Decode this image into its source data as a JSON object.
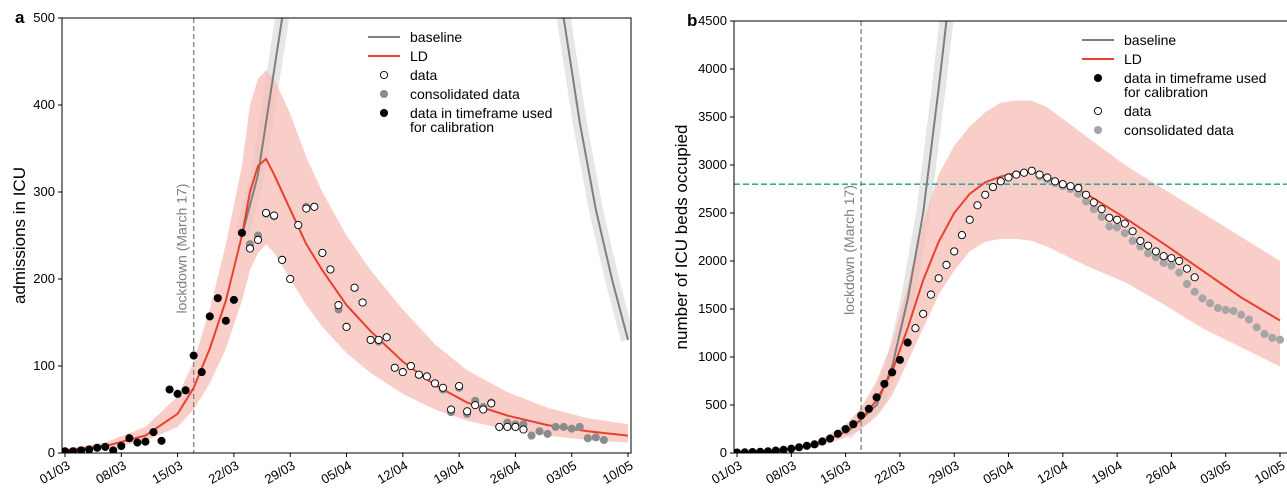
{
  "chart_data": [
    {
      "type": "scatter-line",
      "panel_label": "a",
      "y_label": "admissions in ICU",
      "xlim": [
        "01/03",
        "10/05"
      ],
      "xticks": [
        "01/03",
        "08/03",
        "15/03",
        "22/03",
        "29/03",
        "05/04",
        "12/04",
        "19/04",
        "26/04",
        "03/05",
        "10/05"
      ],
      "ylim": [
        0,
        500
      ],
      "yticks": [
        0,
        100,
        200,
        300,
        400,
        500
      ],
      "legend": "upper right",
      "vline": {
        "x": "17/03",
        "label": "lockdown (March 17)",
        "color": "#808080"
      },
      "series": [
        {
          "name": "baseline",
          "kind": "line",
          "color": "#7f7f7f",
          "halo_color": "#e6e6e6",
          "x": [
            "23/03",
            "25/03",
            "26/03",
            "27/03",
            "28/03",
            "15/04",
            "02/05",
            "04/05",
            "06/05",
            "08/05",
            "10/05"
          ],
          "values": [
            250,
            320,
            380,
            440,
            500,
            null,
            500,
            380,
            280,
            200,
            130
          ]
        },
        {
          "name": "LD",
          "kind": "line",
          "color": "#e8402e",
          "band_color": "#f8bdb5",
          "x": [
            "01/03",
            "06/03",
            "11/03",
            "15/03",
            "17/03",
            "19/03",
            "21/03",
            "23/03",
            "24/03",
            "25/03",
            "26/03",
            "27/03",
            "29/03",
            "31/03",
            "02/04",
            "05/04",
            "08/04",
            "12/04",
            "16/04",
            "20/04",
            "25/04",
            "30/04",
            "05/05",
            "10/05"
          ],
          "values": [
            3,
            8,
            20,
            45,
            75,
            120,
            175,
            250,
            300,
            330,
            338,
            320,
            280,
            240,
            210,
            170,
            140,
            105,
            78,
            58,
            43,
            32,
            25,
            20
          ],
          "band_upper": [
            5,
            12,
            30,
            65,
            105,
            165,
            240,
            330,
            400,
            430,
            440,
            430,
            390,
            340,
            300,
            250,
            210,
            165,
            125,
            95,
            70,
            52,
            40,
            33
          ],
          "band_lower": [
            1,
            5,
            14,
            30,
            50,
            80,
            120,
            175,
            210,
            230,
            240,
            230,
            200,
            170,
            145,
            115,
            92,
            68,
            50,
            37,
            27,
            20,
            15,
            12
          ]
        },
        {
          "name": "data",
          "kind": "scatter",
          "color": "#ffffff",
          "edge": "#000000",
          "x": [
            "24/03",
            "25/03",
            "26/03",
            "27/03",
            "28/03",
            "29/03",
            "30/03",
            "31/03",
            "01/04",
            "02/04",
            "03/04",
            "04/04",
            "05/04",
            "06/04",
            "07/04",
            "08/04",
            "09/04",
            "10/04",
            "11/04",
            "12/04",
            "13/04",
            "14/04",
            "15/04",
            "16/04",
            "17/04",
            "18/04",
            "19/04",
            "20/04",
            "21/04",
            "22/04",
            "23/04",
            "24/04",
            "25/04",
            "26/04",
            "27/04"
          ],
          "values": [
            235,
            245,
            276,
            273,
            222,
            200,
            262,
            281,
            283,
            230,
            211,
            170,
            145,
            190,
            173,
            130,
            130,
            133,
            98,
            93,
            100,
            90,
            88,
            80,
            75,
            50,
            77,
            48,
            55,
            50,
            57,
            30,
            30,
            30,
            27
          ]
        },
        {
          "name": "consolidated data",
          "kind": "scatter",
          "color": "#8c8c8c",
          "edge": "#8c8c8c",
          "x": [
            "24/03",
            "25/03",
            "26/03",
            "27/03",
            "28/03",
            "29/03",
            "30/03",
            "31/03",
            "01/04",
            "02/04",
            "03/04",
            "04/04",
            "05/04",
            "06/04",
            "07/04",
            "08/04",
            "09/04",
            "10/04",
            "11/04",
            "12/04",
            "13/04",
            "14/04",
            "15/04",
            "16/04",
            "17/04",
            "18/04",
            "19/04",
            "20/04",
            "21/04",
            "22/04",
            "23/04",
            "24/04",
            "25/04",
            "26/04",
            "27/04",
            "28/04",
            "29/04",
            "30/04",
            "01/05",
            "02/05",
            "03/05",
            "04/05",
            "05/05",
            "06/05",
            "07/05"
          ],
          "values": [
            240,
            250,
            275,
            272,
            222,
            200,
            262,
            283,
            283,
            230,
            211,
            165,
            145,
            190,
            173,
            130,
            128,
            133,
            98,
            93,
            100,
            90,
            88,
            80,
            73,
            47,
            75,
            45,
            60,
            53,
            58,
            30,
            35,
            33,
            33,
            20,
            25,
            22,
            30,
            30,
            28,
            30,
            17,
            18,
            15
          ]
        },
        {
          "name": "data in timeframe used for calibration",
          "kind": "scatter",
          "color": "#000000",
          "edge": "#000000",
          "x": [
            "01/03",
            "02/03",
            "03/03",
            "04/03",
            "05/03",
            "06/03",
            "07/03",
            "08/03",
            "09/03",
            "10/03",
            "11/03",
            "12/03",
            "13/03",
            "14/03",
            "15/03",
            "16/03",
            "17/03",
            "18/03",
            "19/03",
            "20/03",
            "21/03",
            "22/03",
            "23/03"
          ],
          "values": [
            2,
            2,
            3,
            4,
            6,
            7,
            3,
            8,
            17,
            12,
            13,
            24,
            14,
            73,
            68,
            72,
            112,
            93,
            157,
            178,
            152,
            176,
            253
          ]
        }
      ]
    },
    {
      "type": "scatter-line",
      "panel_label": "b",
      "y_label": "number of ICU beds occupied",
      "xlim": [
        "01/03",
        "10/05"
      ],
      "xticks": [
        "01/03",
        "08/03",
        "15/03",
        "22/03",
        "29/03",
        "05/04",
        "12/04",
        "19/04",
        "26/04",
        "03/05",
        "10/05"
      ],
      "ylim": [
        0,
        4500
      ],
      "yticks": [
        0,
        500,
        1000,
        1500,
        2000,
        2500,
        3000,
        3500,
        4000,
        4500
      ],
      "legend": "upper right",
      "vline": {
        "x": "17/03",
        "label": "lockdown (March 17)",
        "color": "#808080"
      },
      "hline": {
        "y": 2800,
        "color": "#1a9e8f"
      },
      "series": [
        {
          "name": "baseline",
          "kind": "line",
          "color": "#7f7f7f",
          "halo_color": "#e6e6e6",
          "x": [
            "15/03",
            "19/03",
            "21/03",
            "23/03",
            "25/03",
            "27/03",
            "28/03"
          ],
          "values": [
            200,
            500,
            900,
            1600,
            2500,
            3800,
            4500
          ]
        },
        {
          "name": "LD",
          "kind": "line",
          "color": "#e8402e",
          "band_color": "#f8bdb5",
          "x": [
            "01/03",
            "06/03",
            "11/03",
            "15/03",
            "17/03",
            "19/03",
            "21/03",
            "23/03",
            "25/03",
            "27/03",
            "29/03",
            "31/03",
            "02/04",
            "04/04",
            "06/04",
            "08/04",
            "10/04",
            "15/04",
            "20/04",
            "25/04",
            "30/04",
            "05/05",
            "10/05"
          ],
          "values": [
            5,
            20,
            80,
            220,
            350,
            550,
            850,
            1300,
            1800,
            2200,
            2500,
            2700,
            2820,
            2880,
            2920,
            2930,
            2880,
            2700,
            2450,
            2180,
            1900,
            1620,
            1380
          ],
          "band_upper": [
            8,
            30,
            110,
            290,
            470,
            750,
            1150,
            1750,
            2400,
            2900,
            3200,
            3400,
            3550,
            3650,
            3670,
            3670,
            3600,
            3300,
            3000,
            2750,
            2500,
            2250,
            2000
          ],
          "band_lower": [
            3,
            12,
            55,
            160,
            250,
            380,
            600,
            950,
            1300,
            1650,
            1900,
            2100,
            2200,
            2230,
            2230,
            2210,
            2150,
            1950,
            1780,
            1550,
            1300,
            1100,
            900
          ]
        },
        {
          "name": "data in timeframe used for calibration",
          "kind": "scatter",
          "color": "#000000",
          "edge": "#000000",
          "x": [
            "01/03",
            "02/03",
            "03/03",
            "04/03",
            "05/03",
            "06/03",
            "07/03",
            "08/03",
            "09/03",
            "10/03",
            "11/03",
            "12/03",
            "13/03",
            "14/03",
            "15/03",
            "16/03",
            "17/03",
            "18/03",
            "19/03",
            "20/03",
            "21/03",
            "22/03",
            "23/03"
          ],
          "values": [
            5,
            7,
            10,
            13,
            18,
            25,
            33,
            45,
            60,
            75,
            90,
            120,
            150,
            200,
            250,
            300,
            390,
            460,
            580,
            720,
            840,
            970,
            1150
          ]
        },
        {
          "name": "data",
          "kind": "scatter",
          "color": "#ffffff",
          "edge": "#000000",
          "x": [
            "24/03",
            "25/03",
            "26/03",
            "27/03",
            "28/03",
            "29/03",
            "30/03",
            "31/03",
            "01/04",
            "02/04",
            "03/04",
            "04/04",
            "05/04",
            "06/04",
            "07/04",
            "08/04",
            "09/04",
            "10/04",
            "11/04",
            "12/04",
            "13/04",
            "14/04",
            "15/04",
            "16/04",
            "17/04",
            "18/04",
            "19/04",
            "20/04",
            "21/04",
            "22/04",
            "23/04",
            "24/04",
            "25/04",
            "26/04",
            "27/04",
            "28/04",
            "29/04"
          ],
          "values": [
            1300,
            1450,
            1650,
            1820,
            1960,
            2100,
            2270,
            2430,
            2580,
            2690,
            2770,
            2830,
            2870,
            2900,
            2920,
            2940,
            2900,
            2870,
            2830,
            2800,
            2780,
            2760,
            2690,
            2610,
            2540,
            2450,
            2430,
            2390,
            2310,
            2210,
            2160,
            2100,
            2050,
            2030,
            2000,
            1920,
            1830
          ]
        },
        {
          "name": "consolidated data",
          "kind": "scatter",
          "color": "#a6a6a6",
          "edge": "#a6a6a6",
          "x": [
            "24/03",
            "25/03",
            "26/03",
            "27/03",
            "28/03",
            "29/03",
            "30/03",
            "31/03",
            "01/04",
            "02/04",
            "03/04",
            "04/04",
            "05/04",
            "06/04",
            "07/04",
            "08/04",
            "09/04",
            "10/04",
            "11/04",
            "12/04",
            "13/04",
            "14/04",
            "15/04",
            "16/04",
            "17/04",
            "18/04",
            "19/04",
            "20/04",
            "21/04",
            "22/04",
            "23/04",
            "24/04",
            "25/04",
            "26/04",
            "27/04",
            "28/04",
            "29/04",
            "30/04",
            "01/05",
            "02/05",
            "03/05",
            "04/05",
            "05/05",
            "06/05",
            "07/05",
            "08/05",
            "09/05",
            "10/05"
          ],
          "values": [
            1300,
            1450,
            1650,
            1820,
            1960,
            2100,
            2270,
            2430,
            2580,
            2690,
            2770,
            2830,
            2870,
            2900,
            2920,
            2940,
            2880,
            2850,
            2810,
            2780,
            2750,
            2700,
            2620,
            2540,
            2460,
            2360,
            2350,
            2290,
            2210,
            2150,
            2080,
            2040,
            1980,
            1950,
            1880,
            1760,
            1680,
            1610,
            1560,
            1510,
            1490,
            1480,
            1440,
            1390,
            1310,
            1240,
            1200,
            1180
          ]
        }
      ]
    }
  ]
}
